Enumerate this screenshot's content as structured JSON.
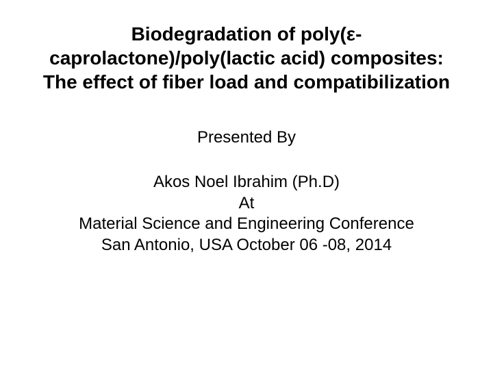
{
  "title": {
    "text": "Biodegradation of poly(ε-caprolactone)/poly(lactic acid) composites: The effect of fiber load and compatibilization",
    "fontsize": 28,
    "fontweight": "bold",
    "color": "#000000"
  },
  "presented_by": {
    "text": "Presented By",
    "fontsize": 24,
    "color": "#000000"
  },
  "details": {
    "lines": [
      "Akos Noel Ibrahim (Ph.D)",
      "At",
      "Material Science and Engineering Conference",
      "San Antonio, USA October 06 -08, 2014"
    ],
    "fontsize": 24,
    "color": "#000000"
  },
  "background_color": "#ffffff"
}
